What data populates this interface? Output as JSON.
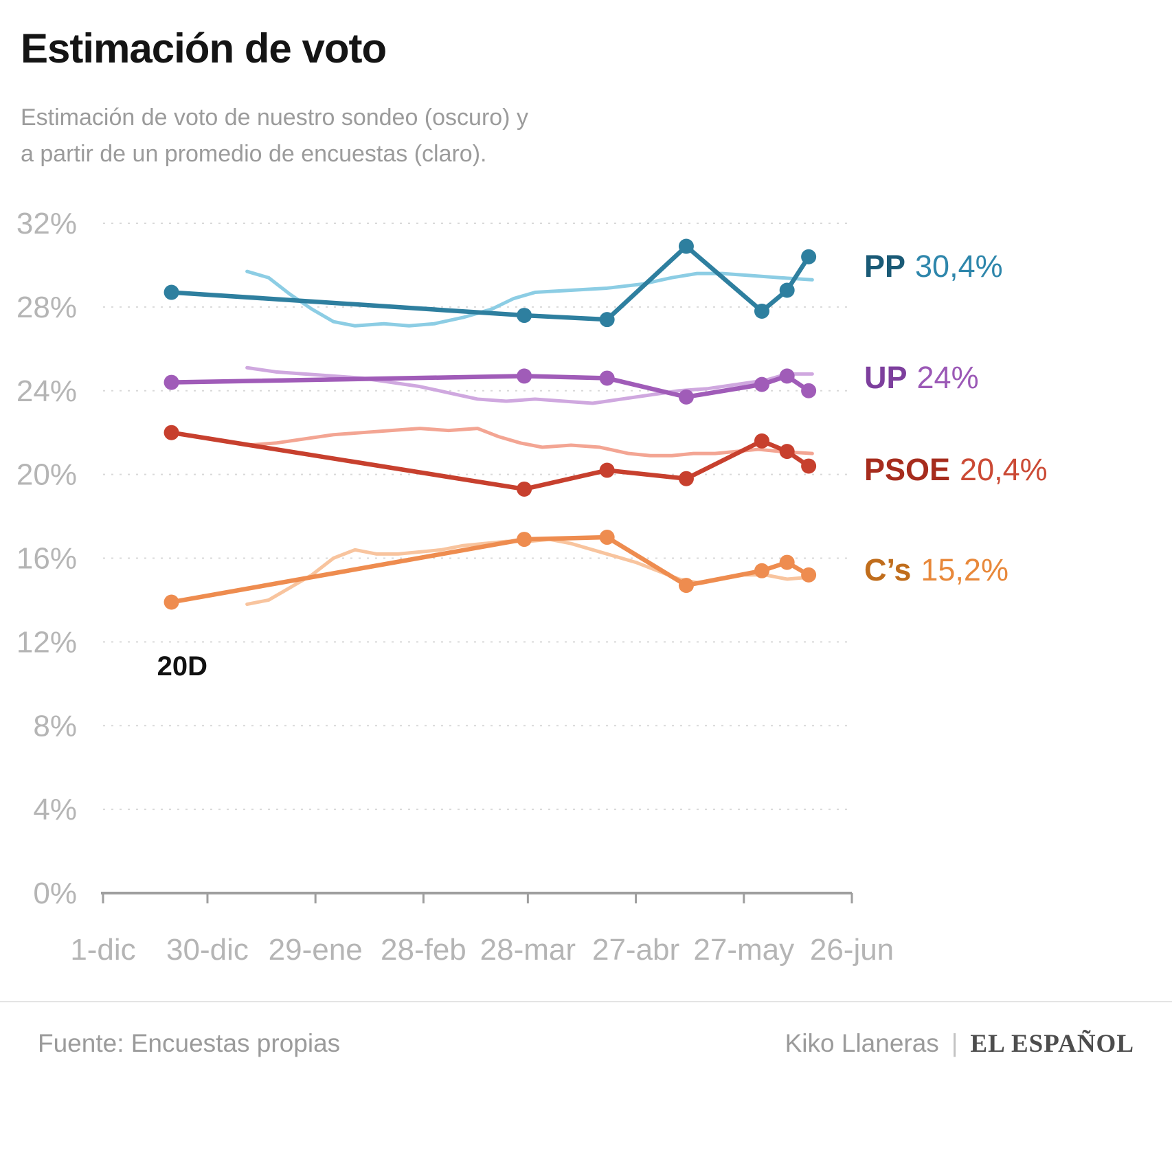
{
  "header": {
    "title": "Estimación de voto",
    "subtitle_line1": "Estimación de voto de nuestro sondeo (oscuro) y",
    "subtitle_line2": "a partir de un promedio de encuestas (claro)."
  },
  "chart_data": {
    "type": "line",
    "x_unit": "days since 1-dic",
    "xlim": [
      0,
      208
    ],
    "ylim": [
      0,
      32
    ],
    "grid": "dotted-horizontal",
    "y_ticks": [
      0,
      4,
      8,
      12,
      16,
      20,
      24,
      28,
      32
    ],
    "x_ticks": [
      {
        "day": 0,
        "label": "1-dic"
      },
      {
        "day": 29,
        "label": "30-dic"
      },
      {
        "day": 59,
        "label": "29-ene"
      },
      {
        "day": 89,
        "label": "28-feb"
      },
      {
        "day": 118,
        "label": "28-mar"
      },
      {
        "day": 148,
        "label": "27-abr"
      },
      {
        "day": 178,
        "label": "27-may"
      },
      {
        "day": 208,
        "label": "26-jun"
      }
    ],
    "annotation": {
      "label": "20D",
      "day": 20,
      "pct": 10.4
    },
    "series": [
      {
        "id": "pp-avg",
        "name": "PP promedio de encuestas",
        "shade": "light",
        "color": "#8ccde4",
        "dots": false,
        "points": [
          [
            40,
            29.7
          ],
          [
            46,
            29.4
          ],
          [
            52,
            28.6
          ],
          [
            58,
            27.9
          ],
          [
            64,
            27.3
          ],
          [
            70,
            27.1
          ],
          [
            78,
            27.2
          ],
          [
            85,
            27.1
          ],
          [
            92,
            27.2
          ],
          [
            100,
            27.5
          ],
          [
            108,
            27.9
          ],
          [
            114,
            28.4
          ],
          [
            120,
            28.7
          ],
          [
            130,
            28.8
          ],
          [
            140,
            28.9
          ],
          [
            150,
            29.1
          ],
          [
            158,
            29.4
          ],
          [
            165,
            29.6
          ],
          [
            172,
            29.6
          ],
          [
            180,
            29.5
          ],
          [
            188,
            29.4
          ],
          [
            197,
            29.3
          ]
        ]
      },
      {
        "id": "up-avg",
        "name": "UP promedio de encuestas",
        "shade": "light",
        "color": "#cfa8df",
        "dots": false,
        "points": [
          [
            40,
            25.1
          ],
          [
            48,
            24.9
          ],
          [
            56,
            24.8
          ],
          [
            64,
            24.7
          ],
          [
            72,
            24.6
          ],
          [
            80,
            24.4
          ],
          [
            88,
            24.2
          ],
          [
            96,
            23.9
          ],
          [
            104,
            23.6
          ],
          [
            112,
            23.5
          ],
          [
            120,
            23.6
          ],
          [
            128,
            23.5
          ],
          [
            136,
            23.4
          ],
          [
            144,
            23.6
          ],
          [
            152,
            23.8
          ],
          [
            160,
            24.0
          ],
          [
            168,
            24.1
          ],
          [
            176,
            24.3
          ],
          [
            184,
            24.5
          ],
          [
            190,
            24.8
          ],
          [
            197,
            24.8
          ]
        ]
      },
      {
        "id": "psoe-avg",
        "name": "PSOE promedio de encuestas",
        "shade": "light",
        "color": "#f3a593",
        "dots": false,
        "points": [
          [
            40,
            21.4
          ],
          [
            48,
            21.5
          ],
          [
            56,
            21.7
          ],
          [
            64,
            21.9
          ],
          [
            72,
            22.0
          ],
          [
            80,
            22.1
          ],
          [
            88,
            22.2
          ],
          [
            96,
            22.1
          ],
          [
            104,
            22.2
          ],
          [
            110,
            21.8
          ],
          [
            116,
            21.5
          ],
          [
            122,
            21.3
          ],
          [
            130,
            21.4
          ],
          [
            138,
            21.3
          ],
          [
            146,
            21.0
          ],
          [
            152,
            20.9
          ],
          [
            158,
            20.9
          ],
          [
            164,
            21.0
          ],
          [
            170,
            21.0
          ],
          [
            176,
            21.1
          ],
          [
            182,
            21.2
          ],
          [
            188,
            21.1
          ],
          [
            197,
            21.0
          ]
        ]
      },
      {
        "id": "cs-avg",
        "name": "C’s promedio de encuestas",
        "shade": "light",
        "color": "#f8c49e",
        "dots": false,
        "points": [
          [
            40,
            13.8
          ],
          [
            46,
            14.0
          ],
          [
            52,
            14.6
          ],
          [
            58,
            15.2
          ],
          [
            64,
            16.0
          ],
          [
            70,
            16.4
          ],
          [
            76,
            16.2
          ],
          [
            82,
            16.2
          ],
          [
            88,
            16.3
          ],
          [
            94,
            16.4
          ],
          [
            100,
            16.6
          ],
          [
            106,
            16.7
          ],
          [
            112,
            16.8
          ],
          [
            118,
            16.8
          ],
          [
            124,
            16.9
          ],
          [
            130,
            16.7
          ],
          [
            136,
            16.4
          ],
          [
            142,
            16.1
          ],
          [
            148,
            15.8
          ],
          [
            154,
            15.4
          ],
          [
            160,
            15.0
          ],
          [
            166,
            14.8
          ],
          [
            172,
            15.0
          ],
          [
            178,
            15.2
          ],
          [
            184,
            15.2
          ],
          [
            190,
            15.0
          ],
          [
            197,
            15.1
          ]
        ]
      },
      {
        "id": "pp",
        "name": "PP sondeo propio",
        "shade": "dark",
        "color": "#2e7f9f",
        "dots": true,
        "points": [
          [
            19,
            28.7
          ],
          [
            117,
            27.6
          ],
          [
            140,
            27.4
          ],
          [
            162,
            30.9
          ],
          [
            183,
            27.8
          ],
          [
            190,
            28.8
          ],
          [
            196,
            30.4
          ]
        ]
      },
      {
        "id": "up",
        "name": "UP sondeo propio",
        "shade": "dark",
        "color": "#a05cb8",
        "dots": true,
        "points": [
          [
            19,
            24.4
          ],
          [
            117,
            24.7
          ],
          [
            140,
            24.6
          ],
          [
            162,
            23.7
          ],
          [
            183,
            24.3
          ],
          [
            190,
            24.7
          ],
          [
            196,
            24.0
          ]
        ]
      },
      {
        "id": "psoe",
        "name": "PSOE sondeo propio",
        "shade": "dark",
        "color": "#c7402e",
        "dots": true,
        "points": [
          [
            19,
            22.0
          ],
          [
            117,
            19.3
          ],
          [
            140,
            20.2
          ],
          [
            162,
            19.8
          ],
          [
            183,
            21.6
          ],
          [
            190,
            21.1
          ],
          [
            196,
            20.4
          ]
        ]
      },
      {
        "id": "cs",
        "name": "C’s sondeo propio",
        "shade": "dark",
        "color": "#ee8c4f",
        "dots": true,
        "points": [
          [
            19,
            13.9
          ],
          [
            117,
            16.9
          ],
          [
            140,
            17.0
          ],
          [
            162,
            14.7
          ],
          [
            183,
            15.4
          ],
          [
            190,
            15.8
          ],
          [
            196,
            15.2
          ]
        ]
      }
    ],
    "legend": [
      {
        "id": "pp",
        "party": "PP",
        "value": "30,4%",
        "name_color": "#1a5a76",
        "value_color": "#2e86ab",
        "anchor_pct": 29.8
      },
      {
        "id": "up",
        "party": "UP",
        "value": "24%",
        "name_color": "#7d3f9d",
        "value_color": "#9b59b6",
        "anchor_pct": 24.5
      },
      {
        "id": "psoe",
        "party": "PSOE",
        "value": "20,4%",
        "name_color": "#a62c1d",
        "value_color": "#cb4a35",
        "anchor_pct": 20.1
      },
      {
        "id": "cs",
        "party": "C’s",
        "value": "15,2%",
        "name_color": "#c06d1c",
        "value_color": "#e8883a",
        "anchor_pct": 15.3
      }
    ]
  },
  "footer": {
    "source": "Fuente: Encuestas propias",
    "author": "Kiko Llaneras",
    "separator": "|",
    "brand": "EL ESPAÑOL"
  }
}
